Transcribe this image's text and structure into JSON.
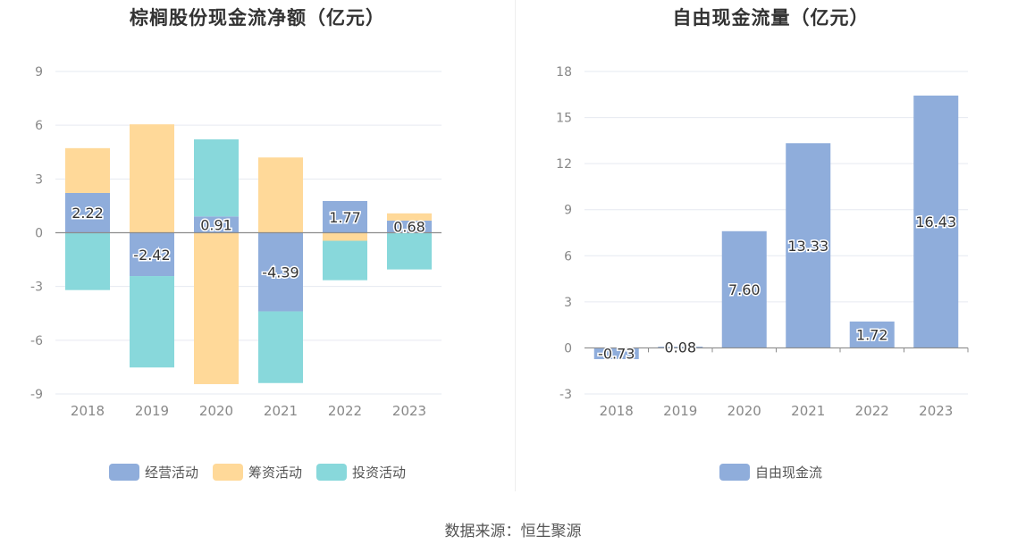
{
  "chart_data": [
    {
      "type": "bar",
      "stacked": true,
      "title": "棕榈股份现金流净额（亿元）",
      "categories": [
        "2018",
        "2019",
        "2020",
        "2021",
        "2022",
        "2023"
      ],
      "series": [
        {
          "name": "经营活动",
          "color": "#8faddb",
          "values": [
            2.22,
            -2.42,
            0.91,
            -4.39,
            1.77,
            0.68
          ]
        },
        {
          "name": "筹资活动",
          "color": "#ffd999",
          "values": [
            2.5,
            6.05,
            -8.45,
            4.2,
            -0.45,
            0.4
          ]
        },
        {
          "name": "投资活动",
          "color": "#88d8db",
          "values": [
            -3.2,
            -5.1,
            4.3,
            -4.0,
            -2.2,
            -2.05
          ]
        }
      ],
      "data_labels_series": "经营活动",
      "yticks": [
        9,
        6,
        3,
        0,
        -3,
        -6,
        -9
      ],
      "ylim": [
        -9,
        9
      ],
      "grid": true,
      "legend_position": "bottom"
    },
    {
      "type": "bar",
      "title": "自由现金流量（亿元）",
      "categories": [
        "2018",
        "2019",
        "2020",
        "2021",
        "2022",
        "2023"
      ],
      "series": [
        {
          "name": "自由现金流",
          "color": "#8faddb",
          "values": [
            -0.73,
            0.08,
            7.6,
            13.33,
            1.72,
            16.43
          ]
        }
      ],
      "data_labels_series": "自由现金流",
      "yticks": [
        18,
        15,
        12,
        9,
        6,
        3,
        0,
        -3
      ],
      "ylim": [
        -3,
        18
      ],
      "grid": true,
      "legend_position": "bottom"
    }
  ],
  "source": "数据来源：恒生聚源"
}
